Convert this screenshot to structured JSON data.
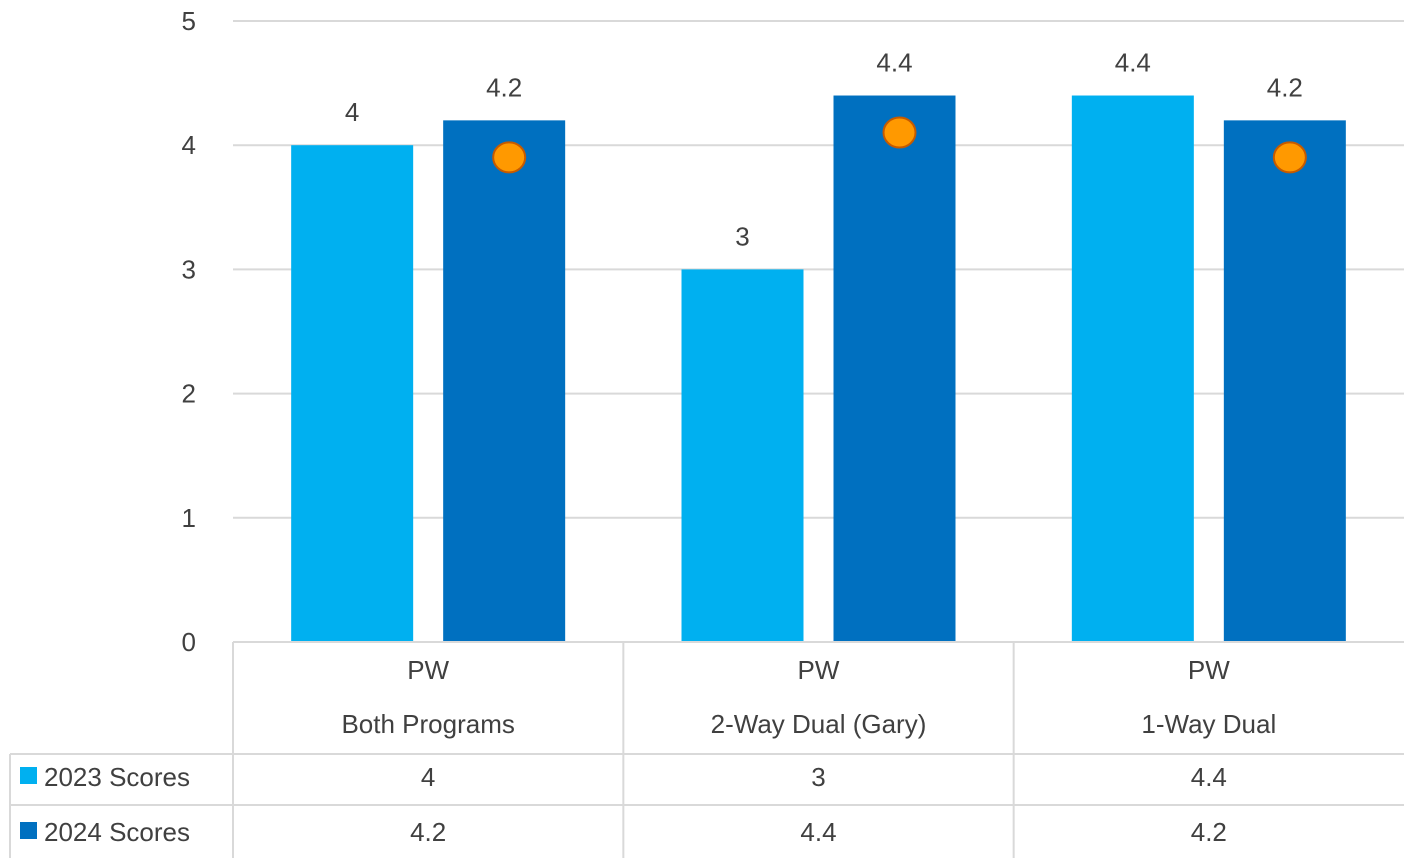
{
  "chart_data": {
    "type": "bar",
    "categories": [
      [
        "PW",
        "Both Programs"
      ],
      [
        "PW",
        "2-Way Dual (Gary)"
      ],
      [
        "PW",
        "1-Way Dual"
      ]
    ],
    "series": [
      {
        "name": "2023 Scores",
        "values": [
          4,
          3,
          4.4
        ],
        "color": "#00B0F0"
      },
      {
        "name": "2024 Scores",
        "values": [
          4.2,
          4.4,
          4.2
        ],
        "color": "#0070C0"
      }
    ],
    "ylim": [
      0,
      5
    ],
    "yticks": [
      0,
      1,
      2,
      3,
      4,
      5
    ],
    "grid": true,
    "data_labels": true,
    "data_table": true,
    "markers": {
      "series": "2024 Scores",
      "shape": "circle",
      "color": "#FF9900",
      "outline": "#C55A00"
    },
    "gridline_color": "#D9D9D9",
    "text_color": "#404040"
  }
}
